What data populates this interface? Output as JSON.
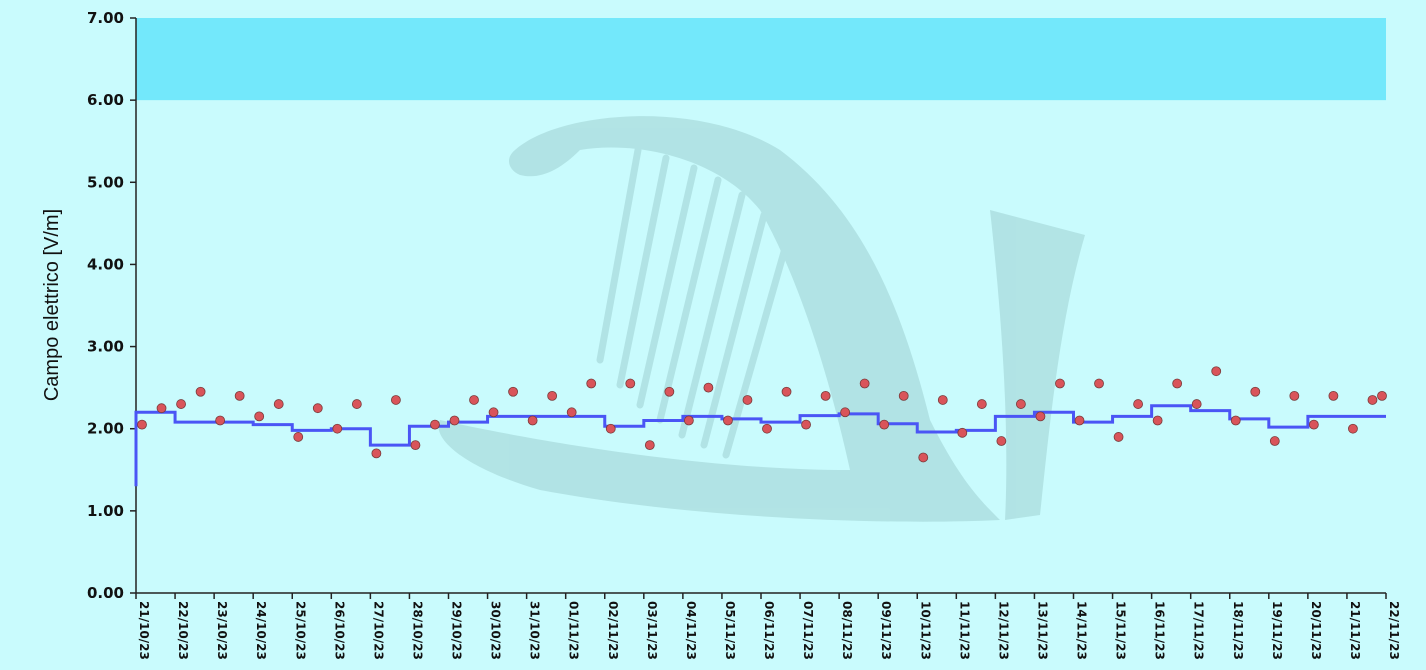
{
  "chart_data": {
    "type": "scatter",
    "title": "",
    "xlabel": "",
    "ylabel": "Campo elettrico [V/m]",
    "ylim": [
      0,
      7
    ],
    "yticks": [
      "0.00",
      "1.00",
      "2.00",
      "3.00",
      "4.00",
      "5.00",
      "6.00",
      "7.00"
    ],
    "xlim": [
      "21/10/23",
      "22/11/23"
    ],
    "x_tick_labels": [
      "21/10/23",
      "22/10/23",
      "23/10/23",
      "24/10/23",
      "25/10/23",
      "26/10/23",
      "27/10/23",
      "28/10/23",
      "29/10/23",
      "30/10/23",
      "31/10/23",
      "01/11/23",
      "02/11/23",
      "03/11/23",
      "04/11/23",
      "05/11/23",
      "06/11/23",
      "07/11/23",
      "08/11/23",
      "09/11/23",
      "10/11/23",
      "11/11/23",
      "12/11/23",
      "13/11/23",
      "14/11/23",
      "15/11/23",
      "16/11/23",
      "17/11/23",
      "18/11/23",
      "19/11/23",
      "20/11/23",
      "21/11/23",
      "22/11/23"
    ],
    "threshold_band": {
      "from": 6.0,
      "to": 7.0,
      "color": "#73e8fb"
    },
    "grid": false,
    "legend": "none",
    "series": [
      {
        "type": "scatter",
        "color": "#d9545a",
        "x": [
          "21/10/23",
          "21/10/23",
          "22/10/23",
          "22/10/23",
          "23/10/23",
          "23/10/23",
          "24/10/23",
          "24/10/23",
          "25/10/23",
          "25/10/23",
          "26/10/23",
          "26/10/23",
          "27/10/23",
          "27/10/23",
          "28/10/23",
          "28/10/23",
          "29/10/23",
          "29/10/23",
          "30/10/23",
          "30/10/23",
          "31/10/23",
          "31/10/23",
          "01/11/23",
          "01/11/23",
          "02/11/23",
          "02/11/23",
          "03/11/23",
          "03/11/23",
          "04/11/23",
          "04/11/23",
          "05/11/23",
          "05/11/23",
          "06/11/23",
          "06/11/23",
          "07/11/23",
          "07/11/23",
          "08/11/23",
          "08/11/23",
          "09/11/23",
          "09/11/23",
          "10/11/23",
          "10/11/23",
          "11/11/23",
          "11/11/23",
          "12/11/23",
          "12/11/23",
          "13/11/23",
          "13/11/23",
          "14/11/23",
          "14/11/23",
          "15/11/23",
          "15/11/23",
          "16/11/23",
          "16/11/23",
          "17/11/23",
          "17/11/23",
          "18/11/23",
          "18/11/23",
          "19/11/23",
          "19/11/23",
          "20/11/23",
          "20/11/23",
          "21/11/23",
          "21/11/23",
          "22/11/23"
        ],
        "y": [
          2.05,
          2.25,
          2.3,
          2.45,
          2.1,
          2.4,
          2.15,
          2.3,
          1.9,
          2.25,
          2.0,
          2.3,
          1.7,
          2.35,
          1.8,
          2.05,
          2.1,
          2.35,
          2.2,
          2.45,
          2.1,
          2.4,
          2.2,
          2.55,
          2.0,
          2.55,
          1.8,
          2.45,
          2.1,
          2.5,
          2.1,
          2.35,
          2.0,
          2.45,
          2.05,
          2.4,
          2.2,
          2.55,
          2.05,
          2.4,
          1.65,
          2.35,
          1.95,
          2.3,
          1.85,
          2.3,
          2.15,
          2.55,
          2.1,
          2.55,
          1.9,
          2.3,
          2.1,
          2.55,
          2.3,
          2.7,
          2.1,
          2.45,
          1.85,
          2.4,
          2.05,
          2.4,
          2.0,
          2.35,
          2.4
        ]
      },
      {
        "type": "step",
        "color": "#4a55f5",
        "x": [
          "21/10/23",
          "22/10/23",
          "23/10/23",
          "24/10/23",
          "25/10/23",
          "26/10/23",
          "27/10/23",
          "28/10/23",
          "29/10/23",
          "30/10/23",
          "31/10/23",
          "01/11/23",
          "02/11/23",
          "03/11/23",
          "04/11/23",
          "05/11/23",
          "06/11/23",
          "07/11/23",
          "08/11/23",
          "09/11/23",
          "10/11/23",
          "11/11/23",
          "12/11/23",
          "13/11/23",
          "14/11/23",
          "15/11/23",
          "16/11/23",
          "17/11/23",
          "18/11/23",
          "19/11/23",
          "20/11/23",
          "21/11/23",
          "22/11/23"
        ],
        "y": [
          2.2,
          2.08,
          2.08,
          2.05,
          1.98,
          2.0,
          1.8,
          2.03,
          2.08,
          2.15,
          2.15,
          2.15,
          2.03,
          2.1,
          2.15,
          2.12,
          2.08,
          2.16,
          2.18,
          2.06,
          1.96,
          1.98,
          2.15,
          2.2,
          2.08,
          2.15,
          2.28,
          2.22,
          2.12,
          2.02,
          2.15,
          2.15,
          2.15
        ]
      }
    ]
  }
}
